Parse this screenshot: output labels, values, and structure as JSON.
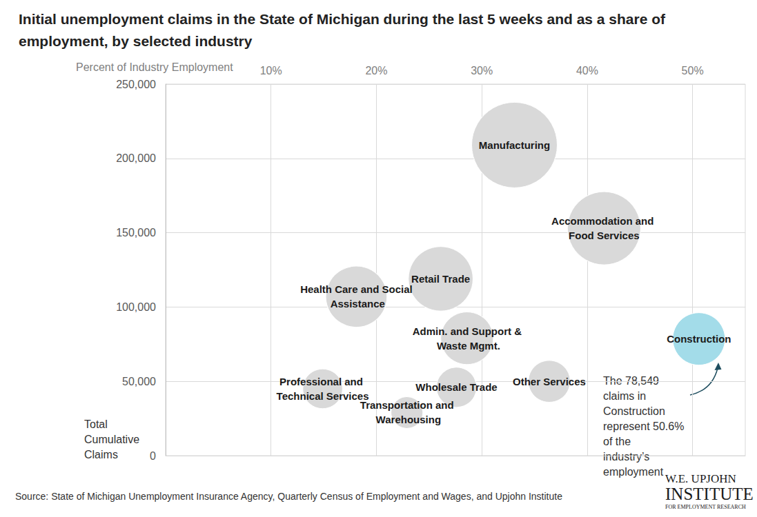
{
  "chart_data": {
    "type": "scatter",
    "title": "Initial unemployment claims in the State of Michigan during the last 5 weeks and as a share of employment, by selected industry",
    "x_label": "Percent of Industry Employment",
    "y_label": "Total Cumulative Claims",
    "labels": [
      "Manufacturing",
      "Accommodation and Food Services",
      "Retail Trade",
      "Health Care and Social Assistance",
      "Admin. and Support & Waste Mgmt.",
      "Construction",
      "Other Services",
      "Wholesale Trade",
      "Professional and Technical Services",
      "Transportation and Warehousing"
    ],
    "x": [
      33.1,
      41.6,
      26.1,
      18.1,
      28.6,
      50.6,
      36.4,
      27.6,
      14.9,
      22.9
    ],
    "values": [
      209000,
      153000,
      119000,
      107000,
      79000,
      78549,
      50000,
      46000,
      45000,
      29000
    ],
    "bubble_size": [
      209000,
      153000,
      119000,
      107000,
      79000,
      78549,
      50000,
      46000,
      45000,
      29000
    ],
    "colors": [
      "#d9d9d9",
      "#d9d9d9",
      "#d9d9d9",
      "#d9d9d9",
      "#d9d9d9",
      "#a3dce9",
      "#d9d9d9",
      "#d9d9d9",
      "#d9d9d9",
      "#d9d9d9"
    ],
    "xlim": [
      0,
      55
    ],
    "xticks": [
      {
        "value": 10,
        "label": "10%"
      },
      {
        "value": 20,
        "label": "20%"
      },
      {
        "value": 30,
        "label": "30%"
      },
      {
        "value": 40,
        "label": "40%"
      },
      {
        "value": 50,
        "label": "50%"
      }
    ],
    "ylim": [
      0,
      250000
    ],
    "yticks": [
      0,
      {
        "value": 50000,
        "label": "50,000"
      },
      {
        "value": 100000,
        "label": "100,000"
      },
      {
        "value": 150000,
        "label": "150,000"
      },
      {
        "value": 200000,
        "label": "200,000"
      },
      {
        "value": 250000,
        "label": "250,000"
      }
    ],
    "grid": true,
    "annotation": "The 78,549 claims in Construction represent 50.6% of the industry’s employment",
    "source": "Source: State of Michigan Unemployment Insurance Agency, Quarterly Census of Employment and Wages, and Upjohn Institute",
    "logo": [
      "W.E. UPJOHN",
      "INSTITUTE",
      "FOR EMPLOYMENT RESEARCH"
    ]
  }
}
